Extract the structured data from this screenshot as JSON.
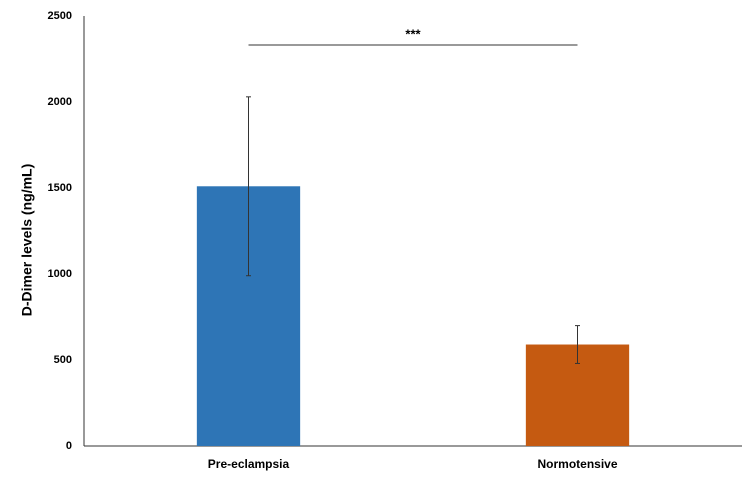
{
  "chart_data": {
    "type": "bar",
    "y_label": "D-Dimer levels (ng/mL)",
    "categories": [
      "Pre-eclampsia",
      "Normotensive"
    ],
    "values": [
      1510,
      590
    ],
    "errors": [
      520,
      110
    ],
    "colors": [
      "#2e75b6",
      "#c55a11"
    ],
    "annotation": "***",
    "ylim": [
      0,
      2500
    ],
    "yticks": [
      0,
      500,
      1000,
      1500,
      2000,
      2500
    ],
    "grid": false
  }
}
